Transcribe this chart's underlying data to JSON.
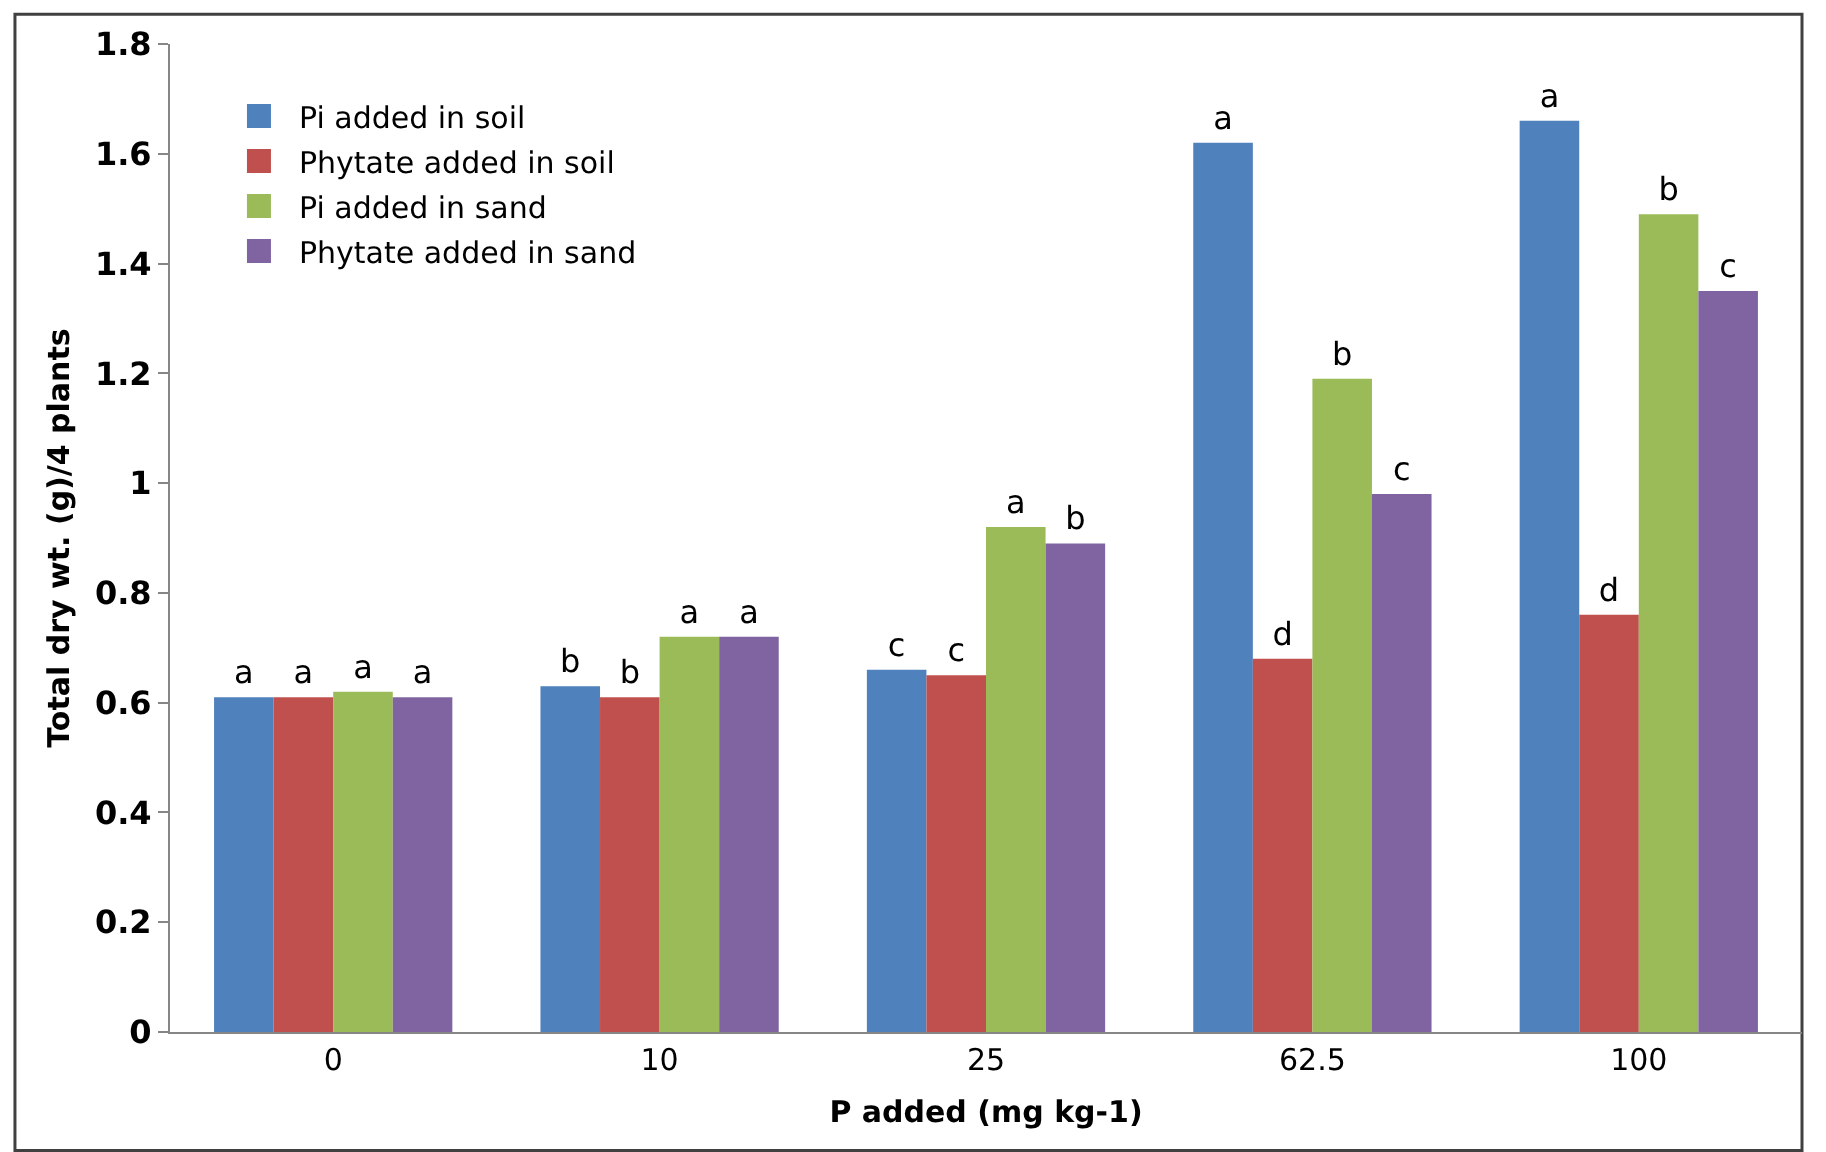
{
  "chart_data": {
    "type": "bar",
    "xlabel": "P added (mg kg-1)",
    "ylabel": "Total dry wt. (g)/4 plants",
    "categories": [
      "0",
      "10",
      "25",
      "62.5",
      "100"
    ],
    "series": [
      {
        "name": "Pi added in soil",
        "color": "#4f81bd",
        "values": [
          0.61,
          0.63,
          0.66,
          1.62,
          1.66
        ],
        "value_labels": [
          "a",
          "b",
          "c",
          "a",
          "a"
        ]
      },
      {
        "name": "Phytate added in soil",
        "color": "#c0504d",
        "values": [
          0.61,
          0.61,
          0.65,
          0.68,
          0.76
        ],
        "value_labels": [
          "a",
          "b",
          "c",
          "d",
          "d"
        ]
      },
      {
        "name": "Pi added in sand",
        "color": "#9bbb59",
        "values": [
          0.62,
          0.72,
          0.92,
          1.19,
          1.49
        ],
        "value_labels": [
          "a",
          "a",
          "a",
          "b",
          "b"
        ]
      },
      {
        "name": "Phytate added in sand",
        "color": "#8064a2",
        "values": [
          0.61,
          0.72,
          0.89,
          0.98,
          1.35
        ],
        "value_labels": [
          "a",
          "a",
          "b",
          "c",
          "c"
        ]
      }
    ],
    "ylim": [
      0,
      1.8
    ],
    "yticks": [
      0,
      0.2,
      0.4,
      0.6,
      0.8,
      1,
      1.2,
      1.4,
      1.6,
      1.8
    ],
    "legend": "top left"
  }
}
